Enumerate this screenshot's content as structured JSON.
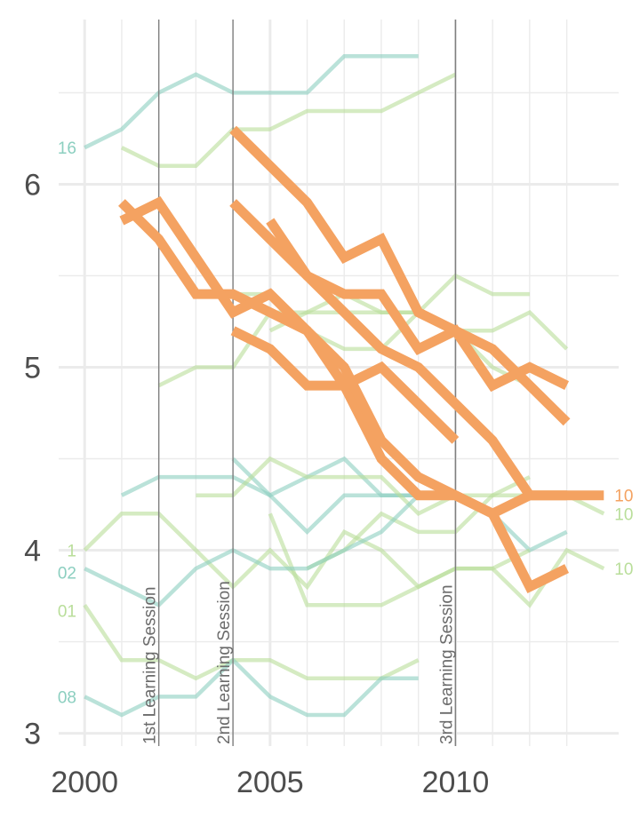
{
  "chart_data": {
    "type": "line",
    "title": "",
    "xlabel": "",
    "ylabel": "",
    "xlim": [
      1999.3,
      2014.4
    ],
    "ylim": [
      2.93,
      6.9
    ],
    "grid": true,
    "x_ticks": [
      {
        "value": 2000,
        "label": "2000"
      },
      {
        "value": 2005,
        "label": "2005"
      },
      {
        "value": 2010,
        "label": "2010"
      }
    ],
    "y_ticks": [
      {
        "value": 3,
        "label": "3"
      },
      {
        "value": 4,
        "label": "4"
      },
      {
        "value": 5,
        "label": "5"
      },
      {
        "value": 6,
        "label": "6"
      }
    ],
    "colors": {
      "highlight": "#F4A261",
      "teal": "#8CCFC0",
      "green": "#B9DE9A",
      "grid": "#EBEBEB",
      "session_line": "#7F7F7F"
    },
    "sessions": [
      {
        "x": 2002,
        "label": "1st Learning Session"
      },
      {
        "x": 2004,
        "label": "2nd Learning Session"
      },
      {
        "x": 2010,
        "label": "3rd Learning Session"
      }
    ],
    "series": [
      {
        "group": "context",
        "color": "teal",
        "points": [
          [
            2000,
            6.2
          ],
          [
            2001,
            6.3
          ],
          [
            2002,
            6.5
          ],
          [
            2003,
            6.6
          ],
          [
            2004,
            6.5
          ],
          [
            2005,
            6.5
          ],
          [
            2006,
            6.5
          ],
          [
            2007,
            6.7
          ],
          [
            2008,
            6.7
          ],
          [
            2009,
            6.7
          ]
        ]
      },
      {
        "group": "context",
        "color": "green",
        "points": [
          [
            2001,
            6.2
          ],
          [
            2002,
            6.1
          ],
          [
            2003,
            6.1
          ],
          [
            2004,
            6.3
          ],
          [
            2005,
            6.3
          ],
          [
            2006,
            6.4
          ],
          [
            2007,
            6.4
          ],
          [
            2008,
            6.4
          ],
          [
            2009,
            6.5
          ],
          [
            2010,
            6.6
          ]
        ]
      },
      {
        "group": "context",
        "color": "green",
        "points": [
          [
            2002,
            4.9
          ],
          [
            2003,
            5.0
          ],
          [
            2004,
            5.0
          ],
          [
            2005,
            5.3
          ],
          [
            2006,
            5.3
          ],
          [
            2007,
            5.3
          ],
          [
            2008,
            5.3
          ],
          [
            2009,
            5.3
          ],
          [
            2010,
            5.5
          ],
          [
            2011,
            5.4
          ],
          [
            2012,
            5.4
          ]
        ]
      },
      {
        "group": "context",
        "color": "green",
        "points": [
          [
            2003,
            5.4
          ],
          [
            2004,
            5.4
          ],
          [
            2005,
            5.4
          ],
          [
            2006,
            5.2
          ],
          [
            2007,
            5.1
          ],
          [
            2008,
            5.1
          ],
          [
            2009,
            5.3
          ],
          [
            2010,
            5.2
          ],
          [
            2011,
            5.2
          ],
          [
            2012,
            5.3
          ],
          [
            2013,
            5.1
          ]
        ]
      },
      {
        "group": "context",
        "color": "green",
        "points": [
          [
            2005,
            5.2
          ],
          [
            2006,
            5.3
          ],
          [
            2007,
            5.4
          ],
          [
            2008,
            5.3
          ],
          [
            2009,
            5.3
          ],
          [
            2010,
            5.2
          ],
          [
            2011,
            5.0
          ],
          [
            2012,
            4.9
          ]
        ]
      },
      {
        "group": "context",
        "color": "teal",
        "points": [
          [
            2001,
            4.3
          ],
          [
            2002,
            4.4
          ],
          [
            2003,
            4.4
          ],
          [
            2004,
            4.4
          ],
          [
            2005,
            4.3
          ],
          [
            2006,
            4.4
          ],
          [
            2007,
            4.5
          ],
          [
            2008,
            4.3
          ],
          [
            2009,
            4.3
          ],
          [
            2010,
            4.3
          ],
          [
            2011,
            4.2
          ],
          [
            2012,
            4.0
          ],
          [
            2013,
            4.1
          ]
        ]
      },
      {
        "group": "context",
        "color": "teal",
        "points": [
          [
            2004,
            4.5
          ],
          [
            2005,
            4.3
          ],
          [
            2006,
            4.1
          ],
          [
            2007,
            4.3
          ],
          [
            2008,
            4.3
          ],
          [
            2009,
            4.3
          ],
          [
            2010,
            4.3
          ]
        ]
      },
      {
        "group": "context",
        "color": "green",
        "points": [
          [
            2003,
            4.3
          ],
          [
            2004,
            4.3
          ],
          [
            2005,
            4.5
          ],
          [
            2006,
            4.4
          ],
          [
            2007,
            4.4
          ],
          [
            2008,
            4.4
          ],
          [
            2009,
            4.2
          ],
          [
            2010,
            4.3
          ],
          [
            2011,
            4.3
          ],
          [
            2012,
            4.3
          ],
          [
            2013,
            4.3
          ],
          [
            2014,
            4.2
          ]
        ],
        "label": "10"
      },
      {
        "group": "context",
        "color": "green",
        "points": [
          [
            2000,
            4.0
          ],
          [
            2001,
            4.2
          ],
          [
            2002,
            4.2
          ],
          [
            2003,
            4.0
          ],
          [
            2004,
            3.8
          ],
          [
            2005,
            4.0
          ],
          [
            2006,
            3.8
          ],
          [
            2007,
            4.1
          ],
          [
            2008,
            4.0
          ],
          [
            2009,
            3.8
          ],
          [
            2010,
            3.9
          ],
          [
            2011,
            3.9
          ],
          [
            2012,
            3.7
          ],
          [
            2013,
            4.0
          ],
          [
            2014,
            3.9
          ]
        ],
        "label": "10"
      },
      {
        "group": "context",
        "color": "green",
        "points": [
          [
            2005,
            4.2
          ],
          [
            2006,
            3.7
          ],
          [
            2007,
            3.7
          ],
          [
            2008,
            3.7
          ],
          [
            2009,
            3.8
          ],
          [
            2010,
            3.9
          ],
          [
            2011,
            3.9
          ],
          [
            2012,
            4.0
          ]
        ]
      },
      {
        "group": "context",
        "color": "green",
        "points": [
          [
            2006,
            3.9
          ],
          [
            2007,
            4.0
          ],
          [
            2008,
            4.2
          ],
          [
            2009,
            4.1
          ],
          [
            2010,
            4.1
          ],
          [
            2011,
            4.3
          ],
          [
            2012,
            4.4
          ]
        ]
      },
      {
        "group": "context",
        "color": "teal",
        "points": [
          [
            2000,
            3.9
          ],
          [
            2001,
            3.8
          ],
          [
            2002,
            3.7
          ],
          [
            2003,
            3.9
          ],
          [
            2004,
            4.0
          ],
          [
            2005,
            3.9
          ],
          [
            2006,
            3.9
          ],
          [
            2007,
            4.0
          ],
          [
            2008,
            4.1
          ],
          [
            2009,
            4.3
          ],
          [
            2010,
            4.3
          ]
        ]
      },
      {
        "group": "context",
        "color": "green",
        "points": [
          [
            2000,
            3.7
          ],
          [
            2001,
            3.4
          ],
          [
            2002,
            3.4
          ],
          [
            2003,
            3.3
          ],
          [
            2004,
            3.4
          ],
          [
            2005,
            3.4
          ],
          [
            2006,
            3.3
          ],
          [
            2007,
            3.3
          ],
          [
            2008,
            3.3
          ],
          [
            2009,
            3.4
          ]
        ]
      },
      {
        "group": "context",
        "color": "teal",
        "points": [
          [
            2000,
            3.2
          ],
          [
            2001,
            3.1
          ],
          [
            2002,
            3.2
          ],
          [
            2003,
            3.2
          ],
          [
            2004,
            3.4
          ],
          [
            2005,
            3.2
          ],
          [
            2006,
            3.1
          ],
          [
            2007,
            3.1
          ],
          [
            2008,
            3.3
          ],
          [
            2009,
            3.3
          ]
        ]
      },
      {
        "group": "highlight",
        "color": "highlight",
        "points": [
          [
            2001,
            5.9
          ],
          [
            2002,
            5.7
          ],
          [
            2003,
            5.4
          ],
          [
            2004,
            5.4
          ],
          [
            2005,
            5.3
          ],
          [
            2006,
            5.2
          ],
          [
            2007,
            4.9
          ],
          [
            2008,
            4.5
          ],
          [
            2009,
            4.3
          ],
          [
            2010,
            4.3
          ],
          [
            2011,
            4.2
          ],
          [
            2012,
            3.8
          ],
          [
            2013,
            3.9
          ]
        ]
      },
      {
        "group": "highlight",
        "color": "highlight",
        "points": [
          [
            2001,
            5.8
          ],
          [
            2002,
            5.9
          ],
          [
            2003,
            5.6
          ],
          [
            2004,
            5.3
          ],
          [
            2005,
            5.4
          ],
          [
            2006,
            5.2
          ],
          [
            2007,
            5.0
          ],
          [
            2008,
            4.6
          ],
          [
            2009,
            4.4
          ],
          [
            2010,
            4.3
          ],
          [
            2011,
            4.2
          ],
          [
            2012,
            4.3
          ],
          [
            2013,
            4.3
          ],
          [
            2014,
            4.3
          ]
        ],
        "label": "10"
      },
      {
        "group": "highlight",
        "color": "highlight",
        "points": [
          [
            2004,
            6.3
          ],
          [
            2005,
            6.1
          ],
          [
            2006,
            5.9
          ],
          [
            2007,
            5.6
          ],
          [
            2008,
            5.7
          ],
          [
            2009,
            5.3
          ],
          [
            2010,
            5.2
          ],
          [
            2011,
            5.1
          ],
          [
            2012,
            4.9
          ],
          [
            2013,
            4.7
          ]
        ]
      },
      {
        "group": "highlight",
        "color": "highlight",
        "points": [
          [
            2004,
            5.9
          ],
          [
            2005,
            5.7
          ],
          [
            2006,
            5.5
          ],
          [
            2007,
            5.4
          ],
          [
            2008,
            5.4
          ],
          [
            2009,
            5.1
          ],
          [
            2010,
            5.2
          ],
          [
            2011,
            4.9
          ],
          [
            2012,
            5.0
          ],
          [
            2013,
            4.9
          ]
        ]
      },
      {
        "group": "highlight",
        "color": "highlight",
        "points": [
          [
            2005,
            5.8
          ],
          [
            2006,
            5.5
          ],
          [
            2007,
            5.3
          ],
          [
            2008,
            5.1
          ],
          [
            2009,
            5.0
          ],
          [
            2010,
            4.8
          ],
          [
            2011,
            4.6
          ],
          [
            2012,
            4.3
          ],
          [
            2013,
            4.3
          ]
        ]
      },
      {
        "group": "highlight",
        "color": "highlight",
        "points": [
          [
            2004,
            5.2
          ],
          [
            2005,
            5.1
          ],
          [
            2006,
            4.9
          ],
          [
            2007,
            4.9
          ],
          [
            2008,
            5.0
          ],
          [
            2009,
            4.8
          ],
          [
            2010,
            4.6
          ]
        ]
      }
    ],
    "left_labels": [
      {
        "y": 6.2,
        "text": "16",
        "color": "teal"
      },
      {
        "y": 4.0,
        "text": "1",
        "color": "green"
      },
      {
        "y": 3.88,
        "text": "02",
        "color": "teal"
      },
      {
        "y": 3.67,
        "text": "01",
        "color": "green"
      },
      {
        "y": 3.2,
        "text": "08",
        "color": "teal"
      }
    ]
  }
}
